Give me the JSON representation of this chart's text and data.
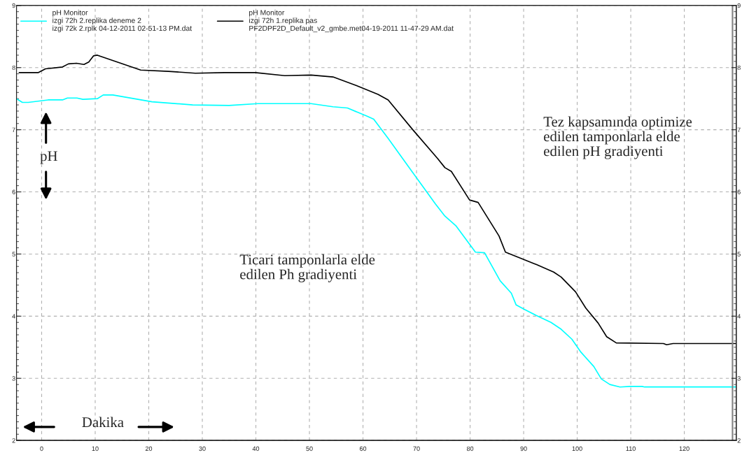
{
  "chart_data": {
    "type": "line",
    "xlim": [
      -4.7,
      129.7
    ],
    "ylim": [
      2,
      9
    ],
    "xticks": [
      0,
      10,
      20,
      30,
      40,
      50,
      60,
      70,
      80,
      90,
      100,
      110,
      120
    ],
    "yticks": [
      2,
      3,
      4,
      5,
      6,
      7,
      8,
      9
    ],
    "y2lim": [
      2,
      9
    ],
    "y2ticks": [
      2,
      3,
      4,
      5,
      6,
      7,
      8,
      9
    ],
    "grid": true,
    "legend": "top left",
    "marker": "none",
    "line_style": "solid",
    "ref_lines": [
      {
        "axis": "x",
        "value": 129.0,
        "color": "#808080"
      }
    ],
    "annotations": [
      "pH",
      "Dakika",
      "Tez kapsamında optimize\nedilen tamponlarla elde\nedilen pH gradiyenti",
      "Ticari tamponlarla elde\nedilen Ph gradiyenti"
    ],
    "series": [
      {
        "name": "pH Monitor\nizgi 72h 2.replika deneme 2\nizgi 72k 2.rplk 04-12-2011 02-51-13 PM.dat",
        "color": "#00ffff",
        "x": [
          -4.7,
          -3.6,
          -2.5,
          1.2,
          3.9,
          4.8,
          6.6,
          7.7,
          10.4,
          11.5,
          13.3,
          20.6,
          28.2,
          35.0,
          40.4,
          50.3,
          54.4,
          57.1,
          60.7,
          62.0,
          64.7,
          69.3,
          73.5,
          75.3,
          77.4,
          81.0,
          82.7,
          85.6,
          87.7,
          88.6,
          90.1,
          92.4,
          95.1,
          97.0,
          99.0,
          100.7,
          103.1,
          104.5,
          106.1,
          108.0,
          109.8,
          112.1,
          112.6,
          129.6
        ],
        "values": [
          7.5,
          7.44,
          7.44,
          7.48,
          7.48,
          7.51,
          7.51,
          7.49,
          7.5,
          7.56,
          7.56,
          7.45,
          7.4,
          7.39,
          7.42,
          7.42,
          7.37,
          7.35,
          7.22,
          7.17,
          6.86,
          6.31,
          5.81,
          5.61,
          5.45,
          5.03,
          5.02,
          4.57,
          4.37,
          4.18,
          4.11,
          4.01,
          3.9,
          3.79,
          3.63,
          3.42,
          3.19,
          2.99,
          2.9,
          2.86,
          2.87,
          2.87,
          2.86,
          2.86
        ]
      },
      {
        "name": "pH Monitor\nizgi 72h 1.replika pas\nPF2DPF2D_Default_v2_gmbe.met04-19-2011 11-47-29 AM.dat",
        "color": "#000000",
        "x": [
          -4.2,
          -0.6,
          0.7,
          3.9,
          5.0,
          6.5,
          7.9,
          8.8,
          9.7,
          10.4,
          18.5,
          23.7,
          28.7,
          34.1,
          39.9,
          45.4,
          50.3,
          54.4,
          58.8,
          62.8,
          64.7,
          69.3,
          73.9,
          75.3,
          76.5,
          79.9,
          81.5,
          85.4,
          86.6,
          92.4,
          95.6,
          97.0,
          99.7,
          101.6,
          103.9,
          105.5,
          107.3,
          116.1,
          116.7,
          117.9,
          129.6
        ],
        "values": [
          7.92,
          7.92,
          7.98,
          8.01,
          8.06,
          8.07,
          8.05,
          8.09,
          8.19,
          8.2,
          7.96,
          7.94,
          7.91,
          7.92,
          7.92,
          7.87,
          7.88,
          7.85,
          7.71,
          7.57,
          7.48,
          7.0,
          6.54,
          6.39,
          6.33,
          5.87,
          5.83,
          5.29,
          5.03,
          4.83,
          4.71,
          4.63,
          4.39,
          4.13,
          3.89,
          3.67,
          3.57,
          3.56,
          3.54,
          3.56,
          3.56
        ]
      }
    ]
  }
}
